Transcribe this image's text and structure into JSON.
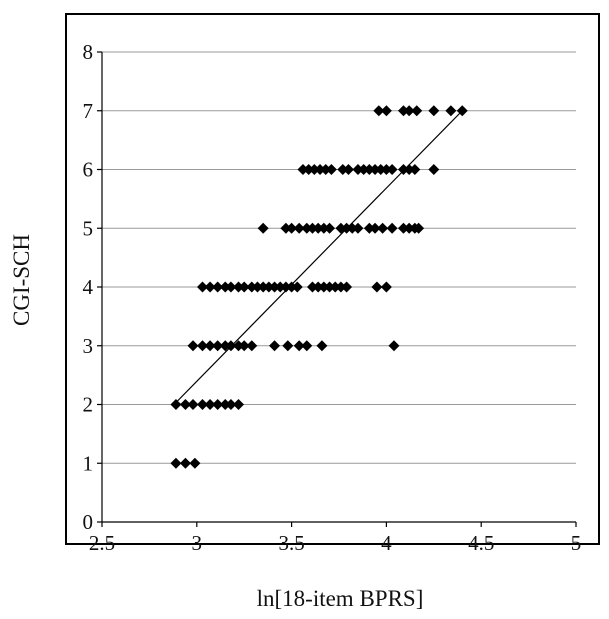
{
  "chart_data": {
    "type": "scatter",
    "title": "",
    "xlabel": "ln[18-item BPRS]",
    "ylabel": "CGI-SCH",
    "xlim": [
      2.5,
      5
    ],
    "ylim": [
      0,
      8
    ],
    "x_ticks": [
      "2.5",
      "3",
      "3.5",
      "4",
      "4.5",
      "5"
    ],
    "y_ticks": [
      "0",
      "1",
      "2",
      "3",
      "4",
      "5",
      "6",
      "7",
      "8"
    ],
    "grid": "horizontal",
    "legend": "none",
    "marker": "diamond",
    "colors": {
      "marker": "#000000",
      "gridline": "#9a9a9a",
      "trendline": "#000000",
      "frame": "#000000"
    },
    "series": [
      {
        "points": [
          [
            2.89,
            1
          ],
          [
            2.94,
            1
          ],
          [
            2.99,
            1
          ],
          [
            2.89,
            2
          ],
          [
            2.94,
            2
          ],
          [
            2.98,
            2
          ],
          [
            3.03,
            2
          ],
          [
            3.07,
            2
          ],
          [
            3.11,
            2
          ],
          [
            3.15,
            2
          ],
          [
            3.18,
            2
          ],
          [
            3.22,
            2
          ],
          [
            2.98,
            3
          ],
          [
            3.03,
            3
          ],
          [
            3.07,
            3
          ],
          [
            3.11,
            3
          ],
          [
            3.15,
            3
          ],
          [
            3.18,
            3
          ],
          [
            3.22,
            3
          ],
          [
            3.25,
            3
          ],
          [
            3.29,
            3
          ],
          [
            3.41,
            3
          ],
          [
            3.48,
            3
          ],
          [
            3.54,
            3
          ],
          [
            3.58,
            3
          ],
          [
            3.66,
            3
          ],
          [
            4.04,
            3
          ],
          [
            3.03,
            4
          ],
          [
            3.07,
            4
          ],
          [
            3.11,
            4
          ],
          [
            3.15,
            4
          ],
          [
            3.18,
            4
          ],
          [
            3.22,
            4
          ],
          [
            3.25,
            4
          ],
          [
            3.29,
            4
          ],
          [
            3.32,
            4
          ],
          [
            3.35,
            4
          ],
          [
            3.38,
            4
          ],
          [
            3.41,
            4
          ],
          [
            3.44,
            4
          ],
          [
            3.47,
            4
          ],
          [
            3.5,
            4
          ],
          [
            3.53,
            4
          ],
          [
            3.61,
            4
          ],
          [
            3.64,
            4
          ],
          [
            3.67,
            4
          ],
          [
            3.7,
            4
          ],
          [
            3.73,
            4
          ],
          [
            3.76,
            4
          ],
          [
            3.79,
            4
          ],
          [
            3.95,
            4
          ],
          [
            4.0,
            4
          ],
          [
            3.35,
            5
          ],
          [
            3.47,
            5
          ],
          [
            3.5,
            5
          ],
          [
            3.54,
            5
          ],
          [
            3.58,
            5
          ],
          [
            3.61,
            5
          ],
          [
            3.64,
            5
          ],
          [
            3.67,
            5
          ],
          [
            3.7,
            5
          ],
          [
            3.76,
            5
          ],
          [
            3.79,
            5
          ],
          [
            3.82,
            5
          ],
          [
            3.85,
            5
          ],
          [
            3.91,
            5
          ],
          [
            3.94,
            5
          ],
          [
            3.98,
            5
          ],
          [
            4.03,
            5
          ],
          [
            4.09,
            5
          ],
          [
            4.12,
            5
          ],
          [
            4.15,
            5
          ],
          [
            4.17,
            5
          ],
          [
            3.56,
            6
          ],
          [
            3.59,
            6
          ],
          [
            3.62,
            6
          ],
          [
            3.65,
            6
          ],
          [
            3.68,
            6
          ],
          [
            3.71,
            6
          ],
          [
            3.77,
            6
          ],
          [
            3.8,
            6
          ],
          [
            3.85,
            6
          ],
          [
            3.88,
            6
          ],
          [
            3.91,
            6
          ],
          [
            3.94,
            6
          ],
          [
            3.97,
            6
          ],
          [
            4.0,
            6
          ],
          [
            4.03,
            6
          ],
          [
            4.09,
            6
          ],
          [
            4.12,
            6
          ],
          [
            4.15,
            6
          ],
          [
            4.25,
            6
          ],
          [
            3.96,
            7
          ],
          [
            4.0,
            7
          ],
          [
            4.09,
            7
          ],
          [
            4.12,
            7
          ],
          [
            4.16,
            7
          ],
          [
            4.25,
            7
          ],
          [
            4.34,
            7
          ],
          [
            4.4,
            7
          ]
        ]
      }
    ],
    "trendline": {
      "x": [
        2.88,
        4.4
      ],
      "y": [
        2.0,
        7.0
      ]
    }
  }
}
